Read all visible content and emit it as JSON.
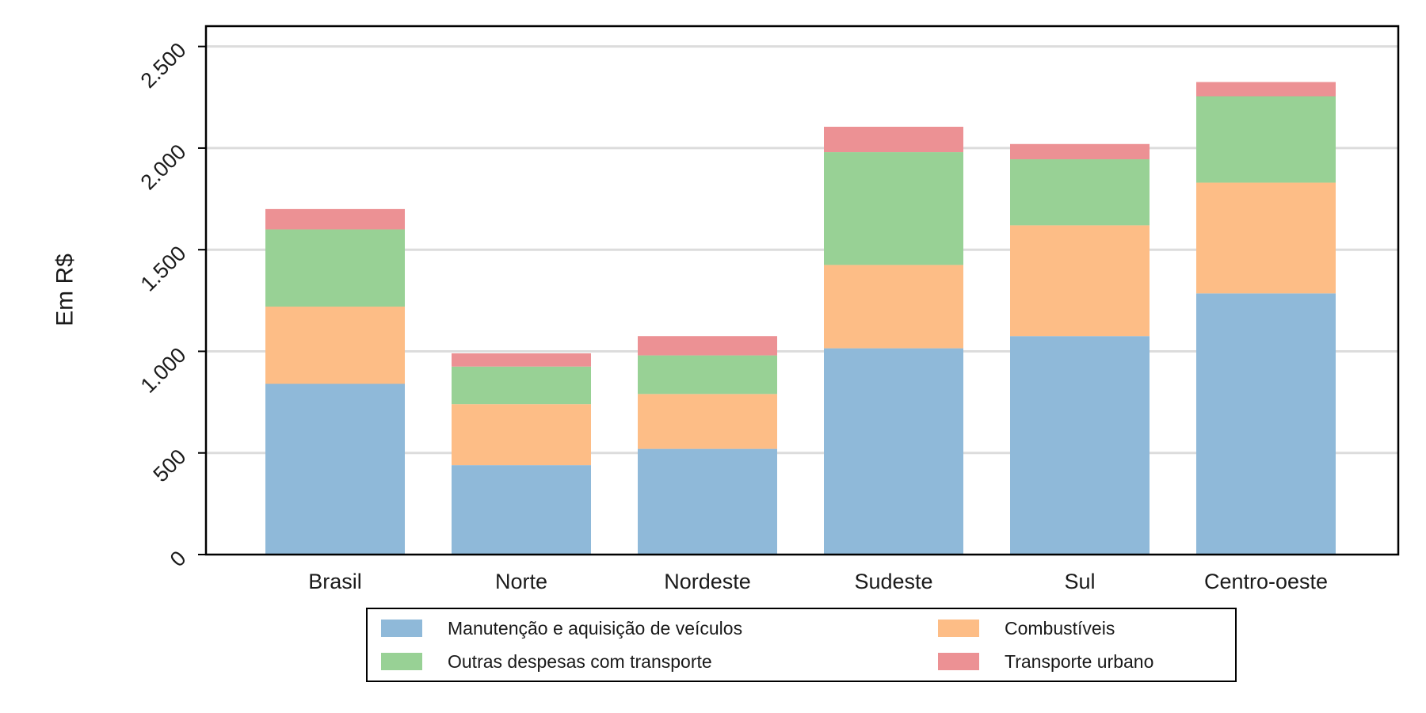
{
  "chart_data": {
    "type": "bar",
    "stacked": true,
    "title": "",
    "xlabel": "",
    "ylabel": "Em R$",
    "ylim": [
      0,
      2600
    ],
    "yticks": [
      0,
      500,
      1000,
      1500,
      2000,
      2500
    ],
    "ytick_labels": [
      "0",
      "500",
      "1.000",
      "1.500",
      "2.000",
      "2.500"
    ],
    "grid": true,
    "legend_position": "bottom",
    "categories": [
      "Brasil",
      "Norte",
      "Nordeste",
      "Sudeste",
      "Sul",
      "Centro-oeste"
    ],
    "series": [
      {
        "name": "Manutenção e aquisição de veículos",
        "color": "#8fb9d9",
        "values": [
          840,
          440,
          520,
          1015,
          1075,
          1285
        ]
      },
      {
        "name": "Combustíveis",
        "color": "#fdbd86",
        "values": [
          380,
          300,
          270,
          410,
          545,
          545
        ]
      },
      {
        "name": "Outras despesas com transporte",
        "color": "#98d195",
        "values": [
          380,
          185,
          190,
          555,
          325,
          425
        ]
      },
      {
        "name": "Transporte urbano",
        "color": "#ec9194",
        "values": [
          100,
          65,
          95,
          125,
          75,
          70
        ]
      }
    ]
  }
}
